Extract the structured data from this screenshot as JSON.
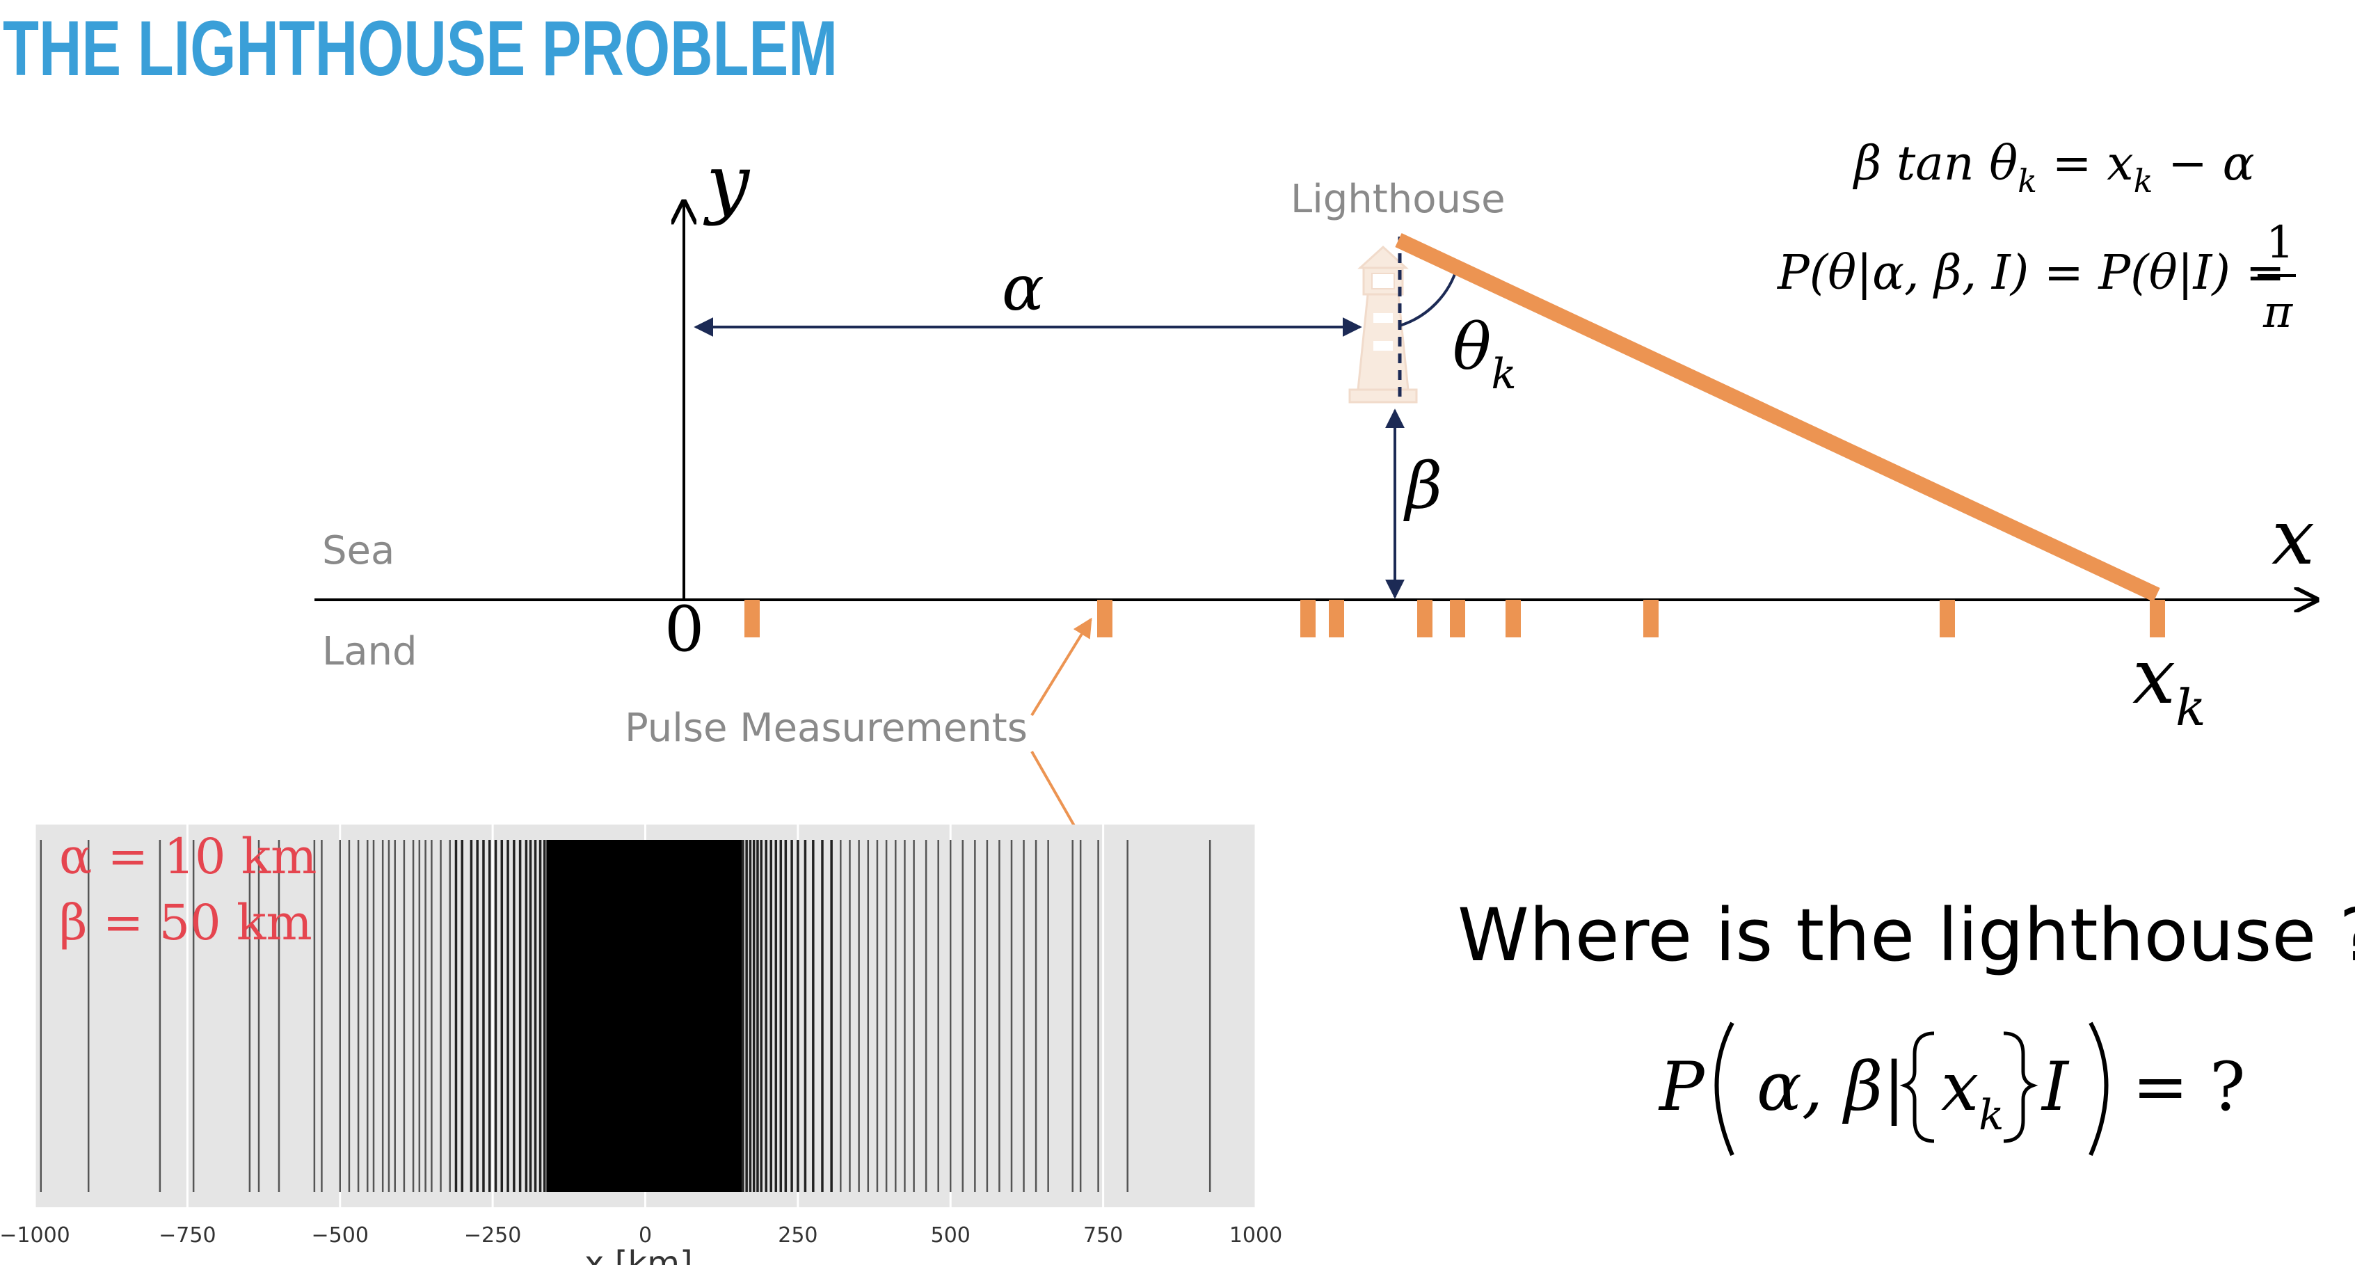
{
  "title": "THE LIGHTHOUSE PROBLEM",
  "labels": {
    "lighthouse": "Lighthouse",
    "sea": "Sea",
    "land": "Land",
    "pulse_measurements": "Pulse Measurements",
    "question": "Where is the lighthouse ?",
    "axis_y": "y",
    "axis_x": "x",
    "origin": "0",
    "alpha": "α",
    "beta": "β",
    "theta": "θ",
    "theta_sub": "k",
    "xk": "x",
    "xk_sub": "k"
  },
  "equations": {
    "eq1_left": "β tan θ",
    "eq1_sub": "k",
    "eq1_mid": " = x",
    "eq1_sub2": "k",
    "eq1_right": " − α",
    "eq2_left": "P(θ|α, β, I) = P(θ|I) =",
    "eq2_num": "1",
    "eq2_den": "π",
    "posterior_left": "P",
    "posterior_args": "α, β|",
    "posterior_x": "x",
    "posterior_sub": "k",
    "posterior_I": "I",
    "posterior_right": "= ?"
  },
  "chart_data": {
    "type": "event-raster",
    "parameters_text": [
      "α = 10 km",
      "β = 50 km"
    ],
    "xlabel": "x [km]",
    "xlim": [
      -1000,
      1000
    ],
    "xticks": [
      -1000,
      -750,
      -500,
      -250,
      0,
      250,
      500,
      750,
      1000
    ],
    "xtick_labels": [
      "−1000",
      "−750",
      "−500",
      "−250",
      "0",
      "250",
      "500",
      "750",
      "1000"
    ],
    "grid": true,
    "pulse_x": [
      -990,
      -912,
      -795,
      -740,
      -648,
      -633,
      -600,
      -542,
      -530,
      -500,
      -485,
      -470,
      -455,
      -445,
      -430,
      -420,
      -410,
      -395,
      -380,
      -370,
      -360,
      -350,
      -335,
      -320,
      -310,
      -300,
      -285,
      -275,
      -265,
      -255,
      -245,
      -235,
      -225,
      -215,
      -205,
      -195,
      -188,
      -180,
      -172,
      -165,
      -158,
      -152,
      -146,
      -140,
      -134,
      -128,
      -122,
      -116,
      -110,
      -104,
      -98,
      -92,
      -86,
      -80,
      -74,
      -68,
      -62,
      -56,
      -50,
      -44,
      -38,
      -32,
      -26,
      -20,
      -14,
      -8,
      -2,
      4,
      10,
      16,
      22,
      28,
      34,
      40,
      46,
      52,
      58,
      64,
      70,
      76,
      82,
      88,
      94,
      100,
      106,
      112,
      118,
      124,
      130,
      136,
      142,
      148,
      154,
      160,
      166,
      172,
      178,
      184,
      190,
      198,
      206,
      214,
      222,
      230,
      240,
      250,
      262,
      275,
      290,
      305,
      320,
      335,
      350,
      365,
      380,
      395,
      410,
      425,
      440,
      460,
      480,
      500,
      520,
      540,
      560,
      580,
      600,
      620,
      640,
      660,
      700,
      713,
      742,
      790,
      925
    ]
  },
  "colors": {
    "title": "#3a9fd8",
    "orange": "#ec9452",
    "navy": "#1c2a55",
    "gray_text": "#8a8a8a",
    "red_text": "#e5454f",
    "plot_bg": "#e5e5e5"
  }
}
